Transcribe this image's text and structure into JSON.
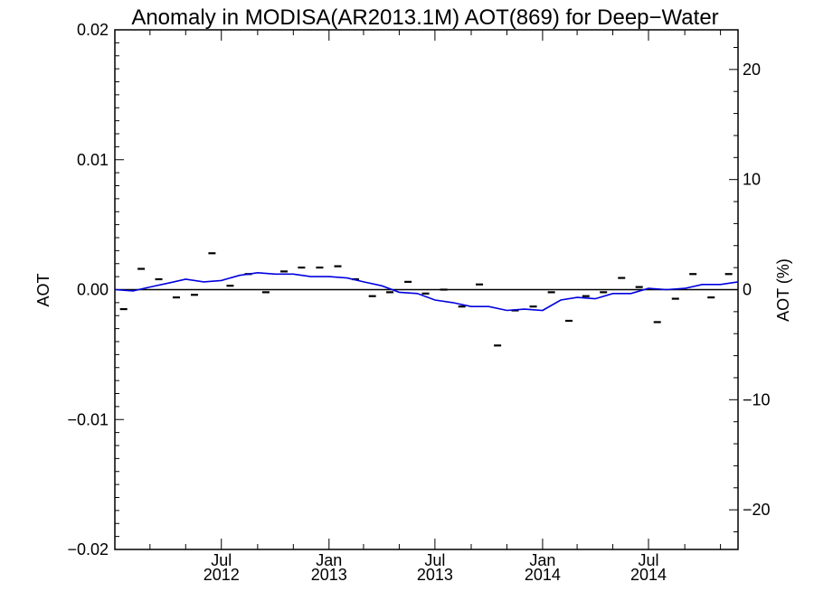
{
  "chart_data": {
    "type": "line",
    "title": "Anomaly in MODISA(AR2013.1M) AOT(869) for Deep−Water",
    "ylabel": "AOT",
    "ylabel_right": "AOT (%)",
    "xlabel": "",
    "xlim": [
      "2012-01-01",
      "2014-12-01"
    ],
    "ylim": [
      -0.02,
      0.02
    ],
    "ylim_right": [
      -23.6,
      23.6
    ],
    "y_ticks": [
      {
        "value": 0.02,
        "label": "0.02"
      },
      {
        "value": 0.01,
        "label": "0.01"
      },
      {
        "value": 0.0,
        "label": "0.00"
      },
      {
        "value": -0.01,
        "label": "−0.01"
      },
      {
        "value": -0.02,
        "label": "−0.02"
      }
    ],
    "y_right_ticks": [
      {
        "value": 20,
        "label": "20"
      },
      {
        "value": 10,
        "label": "10"
      },
      {
        "value": 0,
        "label": "0"
      },
      {
        "value": -10,
        "label": "−10"
      },
      {
        "value": -20,
        "label": "−20"
      }
    ],
    "x_ticks": [
      {
        "date": "2012-07-01",
        "month": "Jul",
        "year": "2012"
      },
      {
        "date": "2013-01-01",
        "month": "Jan",
        "year": "2013"
      },
      {
        "date": "2013-07-01",
        "month": "Jul",
        "year": "2013"
      },
      {
        "date": "2014-01-01",
        "month": "Jan",
        "year": "2014"
      },
      {
        "date": "2014-07-01",
        "month": "Jul",
        "year": "2014"
      }
    ],
    "x_minor_ticks": [
      "2012-03-01",
      "2012-05-01",
      "2012-09-01",
      "2012-11-01",
      "2013-03-01",
      "2013-05-01",
      "2013-09-01",
      "2013-11-01",
      "2014-03-01",
      "2014-05-01",
      "2014-09-01",
      "2014-11-01"
    ],
    "zero_line": true,
    "grid": false,
    "series": [
      {
        "style": "dash",
        "color": "#000000",
        "x": [
          "2012-01-16",
          "2012-02-15",
          "2012-03-16",
          "2012-04-15",
          "2012-05-16",
          "2012-06-15",
          "2012-07-16",
          "2012-08-16",
          "2012-09-15",
          "2012-10-16",
          "2012-11-15",
          "2012-12-16",
          "2013-01-16",
          "2013-02-15",
          "2013-03-16",
          "2013-04-15",
          "2013-05-16",
          "2013-06-15",
          "2013-07-16",
          "2013-08-16",
          "2013-09-15",
          "2013-10-16",
          "2013-11-15",
          "2013-12-16",
          "2014-01-16",
          "2014-02-15",
          "2014-03-16",
          "2014-04-15",
          "2014-05-16",
          "2014-06-15",
          "2014-07-16",
          "2014-08-16",
          "2014-09-15",
          "2014-10-16",
          "2014-11-15"
        ],
        "values": [
          -0.0015,
          0.0016,
          0.0008,
          -0.0006,
          -0.0004,
          0.0028,
          0.0003,
          0.0012,
          -0.0002,
          0.0014,
          0.0017,
          0.0017,
          0.0018,
          0.0008,
          -0.0005,
          -0.0002,
          0.0006,
          -0.0003,
          0.0,
          -0.0013,
          0.0004,
          -0.0043,
          -0.0016,
          -0.0013,
          -0.0002,
          -0.0024,
          -0.0005,
          -0.0002,
          0.0009,
          0.0002,
          -0.0025,
          -0.0007,
          0.0012,
          -0.0006,
          0.0012
        ]
      },
      {
        "style": "line",
        "color": "#0000e0",
        "x": [
          "2012-01-01",
          "2012-02-01",
          "2012-03-01",
          "2012-04-01",
          "2012-05-01",
          "2012-06-01",
          "2012-07-01",
          "2012-08-01",
          "2012-09-01",
          "2012-10-01",
          "2012-11-01",
          "2012-12-01",
          "2013-01-01",
          "2013-02-01",
          "2013-03-01",
          "2013-04-01",
          "2013-05-01",
          "2013-06-01",
          "2013-07-01",
          "2013-08-01",
          "2013-09-01",
          "2013-10-01",
          "2013-11-01",
          "2013-12-01",
          "2014-01-01",
          "2014-02-01",
          "2014-03-01",
          "2014-04-01",
          "2014-05-01",
          "2014-06-01",
          "2014-07-01",
          "2014-08-01",
          "2014-09-01",
          "2014-10-01",
          "2014-11-01",
          "2014-12-01"
        ],
        "values": [
          0.0,
          -0.0001,
          0.0002,
          0.0005,
          0.0008,
          0.0006,
          0.0007,
          0.0011,
          0.0013,
          0.0012,
          0.0012,
          0.001,
          0.001,
          0.0009,
          0.0006,
          0.0003,
          -0.0002,
          -0.0003,
          -0.0008,
          -0.001,
          -0.0013,
          -0.0013,
          -0.0016,
          -0.0015,
          -0.0016,
          -0.0008,
          -0.0006,
          -0.0007,
          -0.0003,
          -0.0003,
          0.0001,
          0.0,
          0.0001,
          0.0004,
          0.0004,
          0.0006
        ]
      }
    ]
  }
}
